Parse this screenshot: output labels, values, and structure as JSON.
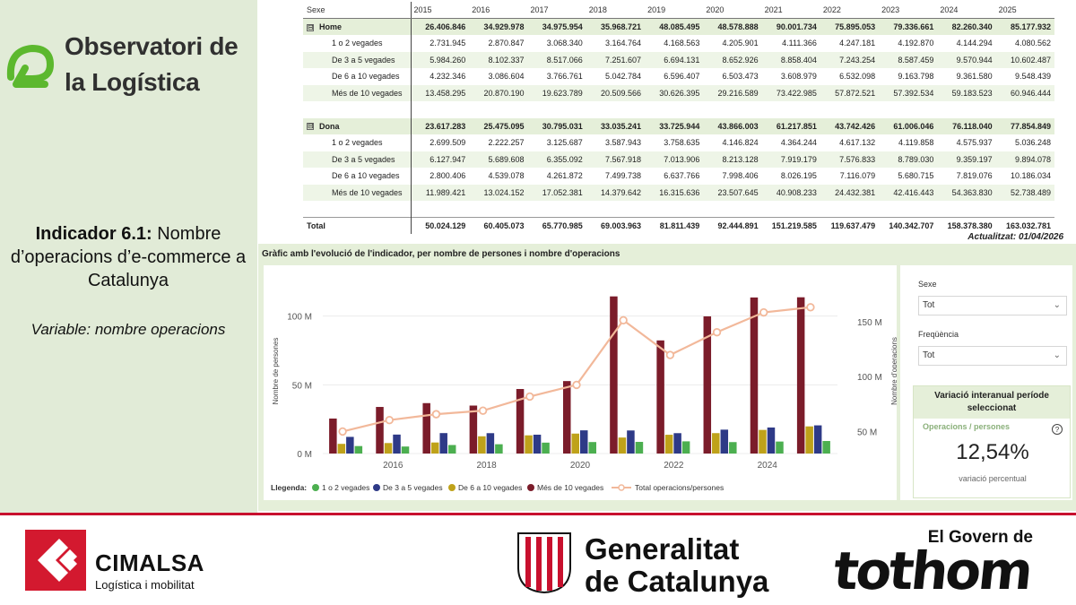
{
  "brand": {
    "title_line1": "Observatori de",
    "title_line2": "la Logística",
    "indicator_bold": "Indicador 6.1:",
    "indicator_text": " Nombre d’operacions d’e-commerce a Catalunya",
    "variable_label": "Variable",
    "variable_text": ": nombre operacions"
  },
  "table": {
    "header_label": "Sexe",
    "years": [
      "2015",
      "2016",
      "2017",
      "2018",
      "2019",
      "2020",
      "2021",
      "2022",
      "2023",
      "2024",
      "2025"
    ],
    "groups": [
      {
        "label": "Home",
        "values": [
          "26.406.846",
          "34.929.978",
          "34.975.954",
          "35.968.721",
          "48.085.495",
          "48.578.888",
          "90.001.734",
          "75.895.053",
          "79.336.661",
          "82.260.340",
          "85.177.932"
        ],
        "rows": [
          {
            "label": "1 o 2 vegades",
            "values": [
              "2.731.945",
              "2.870.847",
              "3.068.340",
              "3.164.764",
              "4.168.563",
              "4.205.901",
              "4.111.366",
              "4.247.181",
              "4.192.870",
              "4.144.294",
              "4.080.562"
            ]
          },
          {
            "label": "De 3 a 5 vegades",
            "values": [
              "5.984.260",
              "8.102.337",
              "8.517.066",
              "7.251.607",
              "6.694.131",
              "8.652.926",
              "8.858.404",
              "7.243.254",
              "8.587.459",
              "9.570.944",
              "10.602.487"
            ]
          },
          {
            "label": "De 6 a 10 vegades",
            "values": [
              "4.232.346",
              "3.086.604",
              "3.766.761",
              "5.042.784",
              "6.596.407",
              "6.503.473",
              "3.608.979",
              "6.532.098",
              "9.163.798",
              "9.361.580",
              "9.548.439"
            ]
          },
          {
            "label": "Més de 10 vegades",
            "values": [
              "13.458.295",
              "20.870.190",
              "19.623.789",
              "20.509.566",
              "30.626.395",
              "29.216.589",
              "73.422.985",
              "57.872.521",
              "57.392.534",
              "59.183.523",
              "60.946.444"
            ]
          }
        ]
      },
      {
        "label": "Dona",
        "values": [
          "23.617.283",
          "25.475.095",
          "30.795.031",
          "33.035.241",
          "33.725.944",
          "43.866.003",
          "61.217.851",
          "43.742.426",
          "61.006.046",
          "76.118.040",
          "77.854.849"
        ],
        "rows": [
          {
            "label": "1 o 2 vegades",
            "values": [
              "2.699.509",
              "2.222.257",
              "3.125.687",
              "3.587.943",
              "3.758.635",
              "4.146.824",
              "4.364.244",
              "4.617.132",
              "4.119.858",
              "4.575.937",
              "5.036.248"
            ]
          },
          {
            "label": "De 3 a 5 vegades",
            "values": [
              "6.127.947",
              "5.689.608",
              "6.355.092",
              "7.567.918",
              "7.013.906",
              "8.213.128",
              "7.919.179",
              "7.576.833",
              "8.789.030",
              "9.359.197",
              "9.894.078"
            ]
          },
          {
            "label": "De 6 a 10 vegades",
            "values": [
              "2.800.406",
              "4.539.078",
              "4.261.872",
              "7.499.738",
              "6.637.766",
              "7.998.406",
              "8.026.195",
              "7.116.079",
              "5.680.715",
              "7.819.076",
              "10.186.034"
            ]
          },
          {
            "label": "Més de 10 vegades",
            "values": [
              "11.989.421",
              "13.024.152",
              "17.052.381",
              "14.379.642",
              "16.315.636",
              "23.507.645",
              "40.908.233",
              "24.432.381",
              "42.416.443",
              "54.363.830",
              "52.738.489"
            ]
          }
        ]
      }
    ],
    "total_label": "Total",
    "total_values": [
      "50.024.129",
      "60.405.073",
      "65.770.985",
      "69.003.963",
      "81.811.439",
      "92.444.891",
      "151.219.585",
      "119.637.479",
      "140.342.707",
      "158.378.380",
      "163.032.781"
    ],
    "updated": "Actualitzat: 01/04/2026"
  },
  "chart_section": {
    "title": "Gràfic amb l'evolució de l'indicador, per nombre de persones i nombre d'operacions"
  },
  "chart_data": {
    "type": "bar",
    "x": [
      2015,
      2016,
      2017,
      2018,
      2019,
      2020,
      2021,
      2022,
      2023,
      2024,
      2025
    ],
    "x_tick_labels": [
      "2016",
      "2018",
      "2020",
      "2022",
      "2024"
    ],
    "ylabel": "Nombre de persones",
    "y2label": "Nombre d'operacions",
    "y_ticks": [
      "0 M",
      "50 M",
      "100 M"
    ],
    "y2_ticks": [
      "50 M",
      "100 M",
      "150 M"
    ],
    "ylim": [
      0,
      120000000
    ],
    "y2lim": [
      30000000,
      180000000
    ],
    "legend_title": "Llegenda:",
    "series": [
      {
        "name": "1 o 2 vegades",
        "color": "#4caf50",
        "axis": "left",
        "values": [
          5431454,
          5093104,
          6194027,
          6752707,
          7927198,
          8352725,
          8475610,
          8864313,
          8312728,
          8720231,
          9116810
        ]
      },
      {
        "name": "De 3 a 5 vegades",
        "color": "#2e3a87",
        "axis": "left",
        "values": [
          12112207,
          13791945,
          14872158,
          14819525,
          13708037,
          16866054,
          16777583,
          14820087,
          17376489,
          18930141,
          20496565
        ]
      },
      {
        "name": "De 6 a 10 vegades",
        "color": "#bfa21a",
        "axis": "left",
        "values": [
          7032752,
          7625682,
          8028633,
          12542522,
          13234173,
          14501879,
          11635174,
          13648177,
          14844513,
          17180656,
          19734473
        ]
      },
      {
        "name": "Més de 10 vegades",
        "color": "#7b1c2a",
        "axis": "left",
        "values": [
          25447716,
          33894342,
          36676170,
          34889208,
          46942031,
          52724234,
          114331218,
          82304902,
          99808977,
          113547353,
          113684933
        ]
      },
      {
        "name": "Total operacions/persones",
        "color": "#f2b89a",
        "type": "line",
        "axis": "right",
        "values": [
          50024129,
          60405073,
          65770985,
          69003963,
          81811439,
          92444891,
          151219585,
          119637479,
          140342707,
          158378380,
          163032781
        ]
      }
    ]
  },
  "filters": {
    "sexe_label": "Sexe",
    "sexe_value": "Tot",
    "freq_label": "Freqüència",
    "freq_value": "Tot"
  },
  "kpi": {
    "title": "Variació interanual període seleccionat",
    "subtitle": "Operacions / persones",
    "help": "?",
    "value": "12,54%",
    "caption": "variació percentual"
  },
  "footer": {
    "cimalsa_name": "CIMALSA",
    "cimalsa_tag": "Logística i mobilitat",
    "gencat_line1": "Generalitat",
    "gencat_line2": "de Catalunya",
    "govern_top": "El Govern de",
    "govern_big": "tothom"
  },
  "colors": {
    "panel_green": "#e1ebd7",
    "logo_green": "#5cb82e",
    "accent_red": "#c8102e"
  }
}
